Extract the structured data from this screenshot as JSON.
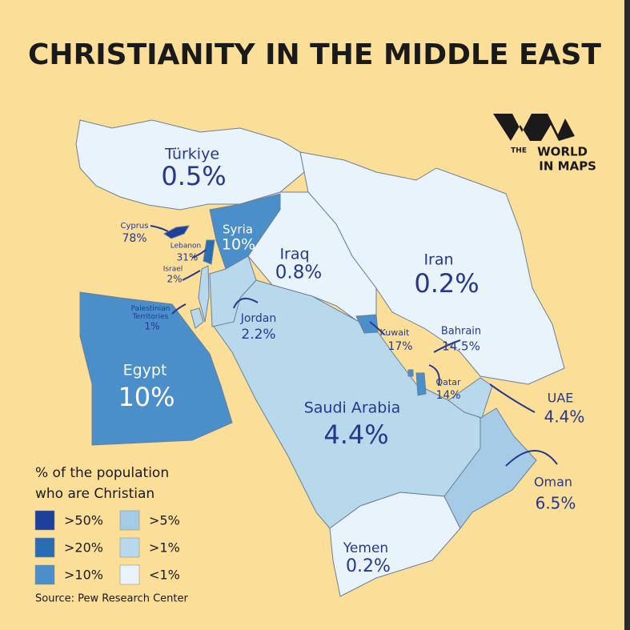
{
  "title": "CHRISTIANITY IN THE MIDDLE EAST",
  "logo": {
    "small": "THE",
    "line1": "WORLD",
    "line2": "IN MAPS"
  },
  "countries": [
    {
      "name": "Türkiye",
      "share": "0.5%",
      "color": "#e9f3fb"
    },
    {
      "name": "Iran",
      "share": "0.2%",
      "color": "#e9f3fb"
    },
    {
      "name": "Iraq",
      "share": "0.8%",
      "color": "#e9f3fb"
    },
    {
      "name": "Syria",
      "share": "10%",
      "color": "#4a8fc9"
    },
    {
      "name": "Saudi Arabia",
      "share": "4.4%",
      "color": "#b8d9ec"
    },
    {
      "name": "Jordan",
      "share": "2.2%",
      "color": "#b8d9ec"
    },
    {
      "name": "Egypt",
      "share": "10%",
      "color": "#4a8fc9"
    },
    {
      "name": "Yemen",
      "share": "0.2%",
      "color": "#e9f3fb"
    },
    {
      "name": "Oman",
      "share": "6.5%",
      "color": "#a5cbe6"
    },
    {
      "name": "UAE",
      "share": "4.4%",
      "color": "#b8d9ec"
    },
    {
      "name": "Qatar",
      "share": "14%",
      "color": "#4a8fc9"
    },
    {
      "name": "Bahrain",
      "share": "14.5%",
      "color": "#4a8fc9"
    },
    {
      "name": "Kuwait",
      "share": "17%",
      "color": "#4a8fc9"
    },
    {
      "name": "Lebanon",
      "share": "31%",
      "color": "#2a6cb3"
    },
    {
      "name": "Israel",
      "share": "2%",
      "color": "#b8d9ec"
    },
    {
      "name": "Palestinian Territories",
      "share": "1%",
      "color": "#b8d9ec"
    },
    {
      "name": "Cyprus",
      "share": "78%",
      "color": "#1f3f9c"
    }
  ],
  "legend": {
    "title": [
      "% of the population",
      "who are Christian"
    ],
    "items": [
      {
        "label": ">50%",
        "color": "#1f3f9c"
      },
      {
        "label": ">20%",
        "color": "#2a6cb3"
      },
      {
        "label": ">10%",
        "color": "#4a8fc9"
      },
      {
        "label": ">5%",
        "color": "#a5cbe6"
      },
      {
        "label": ">1%",
        "color": "#b8d9ec"
      },
      {
        "label": "<1%",
        "color": "#e9f3fb"
      }
    ]
  },
  "source": "Source: Pew Research Center"
}
